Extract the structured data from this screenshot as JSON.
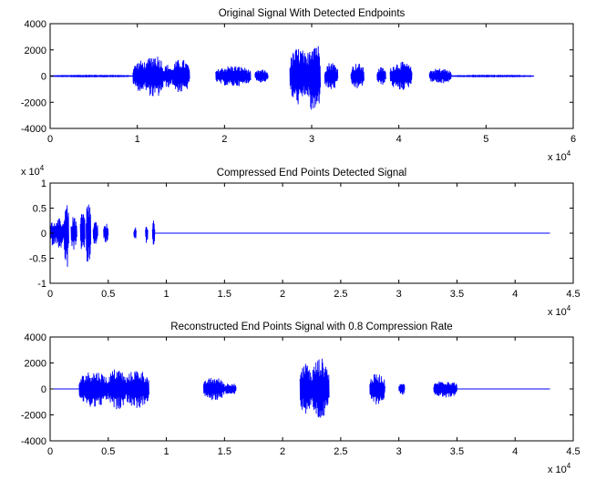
{
  "chart_data": [
    {
      "type": "line",
      "title": "Original Signal With Detected Endpoints",
      "xlabel": "",
      "ylabel": "",
      "xlim": [
        0,
        6
      ],
      "ylim": [
        -4000,
        4000
      ],
      "x_multiplier": "x 10",
      "x_multiplier_exp": "4",
      "xticks": [
        "0",
        "1",
        "2",
        "3",
        "4",
        "5",
        "6"
      ],
      "yticks": [
        "4000",
        "2000",
        "0",
        "-2000",
        "-4000"
      ],
      "color": "#0000ff",
      "grid": false,
      "series": [
        {
          "segments": [
            {
              "x_start": 0.0,
              "x_end": 0.95,
              "amplitude": 40
            },
            {
              "x_start": 0.95,
              "x_end": 1.15,
              "amplitude": 1200
            },
            {
              "x_start": 1.1,
              "x_end": 1.3,
              "amplitude": 1700
            },
            {
              "x_start": 1.3,
              "x_end": 1.4,
              "amplitude": 900
            },
            {
              "x_start": 1.4,
              "x_end": 1.6,
              "amplitude": 1300
            },
            {
              "x_start": 1.9,
              "x_end": 2.3,
              "amplitude": 800
            },
            {
              "x_start": 2.35,
              "x_end": 2.5,
              "amplitude": 500
            },
            {
              "x_start": 2.75,
              "x_end": 2.95,
              "amplitude": 2200
            },
            {
              "x_start": 2.95,
              "x_end": 3.1,
              "amplitude": 3000
            },
            {
              "x_start": 3.15,
              "x_end": 3.3,
              "amplitude": 1100
            },
            {
              "x_start": 3.45,
              "x_end": 3.6,
              "amplitude": 1000
            },
            {
              "x_start": 3.75,
              "x_end": 3.85,
              "amplitude": 700
            },
            {
              "x_start": 3.9,
              "x_end": 4.15,
              "amplitude": 1100
            },
            {
              "x_start": 4.35,
              "x_end": 4.6,
              "amplitude": 600
            },
            {
              "x_start": 4.6,
              "x_end": 5.55,
              "amplitude": 40
            }
          ]
        }
      ]
    },
    {
      "type": "line",
      "title": "Compressed End Points Detected Signal",
      "xlabel": "",
      "ylabel": "",
      "xlim": [
        0,
        4.5
      ],
      "ylim": [
        -1,
        1
      ],
      "x_multiplier": "x 10",
      "x_multiplier_exp": "4",
      "y_multiplier": "x 10",
      "y_multiplier_exp": "4",
      "xticks": [
        "0",
        "0.5",
        "1",
        "1.5",
        "2",
        "2.5",
        "3",
        "3.5",
        "4",
        "4.5"
      ],
      "yticks": [
        "1",
        "0.5",
        "0",
        "-0.5",
        "-1"
      ],
      "color": "#0000ff",
      "grid": false,
      "series": [
        {
          "segments": [
            {
              "x_start": 0.0,
              "x_end": 0.05,
              "amplitude": 0.25
            },
            {
              "x_start": 0.05,
              "x_end": 0.12,
              "amplitude": 0.3
            },
            {
              "x_start": 0.12,
              "x_end": 0.16,
              "amplitude": 0.75
            },
            {
              "x_start": 0.18,
              "x_end": 0.23,
              "amplitude": 0.35
            },
            {
              "x_start": 0.26,
              "x_end": 0.3,
              "amplitude": 0.45
            },
            {
              "x_start": 0.31,
              "x_end": 0.35,
              "amplitude": 0.7
            },
            {
              "x_start": 0.37,
              "x_end": 0.41,
              "amplitude": 0.25
            },
            {
              "x_start": 0.46,
              "x_end": 0.5,
              "amplitude": 0.2
            },
            {
              "x_start": 0.72,
              "x_end": 0.74,
              "amplitude": 0.15
            },
            {
              "x_start": 0.82,
              "x_end": 0.84,
              "amplitude": 0.2
            },
            {
              "x_start": 0.88,
              "x_end": 0.9,
              "amplitude": 0.25
            },
            {
              "x_start": 0.9,
              "x_end": 4.3,
              "amplitude": 0.0
            }
          ]
        }
      ]
    },
    {
      "type": "line",
      "title": "Reconstructed End Points Signal with 0.8 Compression Rate",
      "xlabel": "",
      "ylabel": "",
      "xlim": [
        0,
        4.5
      ],
      "ylim": [
        -4000,
        4000
      ],
      "x_multiplier": "x 10",
      "x_multiplier_exp": "4",
      "xticks": [
        "0",
        "0.5",
        "1",
        "1.5",
        "2",
        "2.5",
        "3",
        "3.5",
        "4",
        "4.5"
      ],
      "yticks": [
        "4000",
        "2000",
        "0",
        "-2000",
        "-4000"
      ],
      "color": "#0000ff",
      "grid": false,
      "series": [
        {
          "segments": [
            {
              "x_start": 0.0,
              "x_end": 0.25,
              "amplitude": 0
            },
            {
              "x_start": 0.25,
              "x_end": 0.5,
              "amplitude": 1400
            },
            {
              "x_start": 0.5,
              "x_end": 0.65,
              "amplitude": 1600
            },
            {
              "x_start": 0.65,
              "x_end": 0.85,
              "amplitude": 1500
            },
            {
              "x_start": 1.32,
              "x_end": 1.5,
              "amplitude": 900
            },
            {
              "x_start": 1.5,
              "x_end": 1.6,
              "amplitude": 500
            },
            {
              "x_start": 2.15,
              "x_end": 2.25,
              "amplitude": 2000
            },
            {
              "x_start": 2.25,
              "x_end": 2.4,
              "amplitude": 2400
            },
            {
              "x_start": 2.75,
              "x_end": 2.88,
              "amplitude": 1200
            },
            {
              "x_start": 3.0,
              "x_end": 3.05,
              "amplitude": 500
            },
            {
              "x_start": 3.3,
              "x_end": 3.5,
              "amplitude": 700
            },
            {
              "x_start": 3.5,
              "x_end": 4.3,
              "amplitude": 0
            }
          ]
        }
      ]
    }
  ]
}
